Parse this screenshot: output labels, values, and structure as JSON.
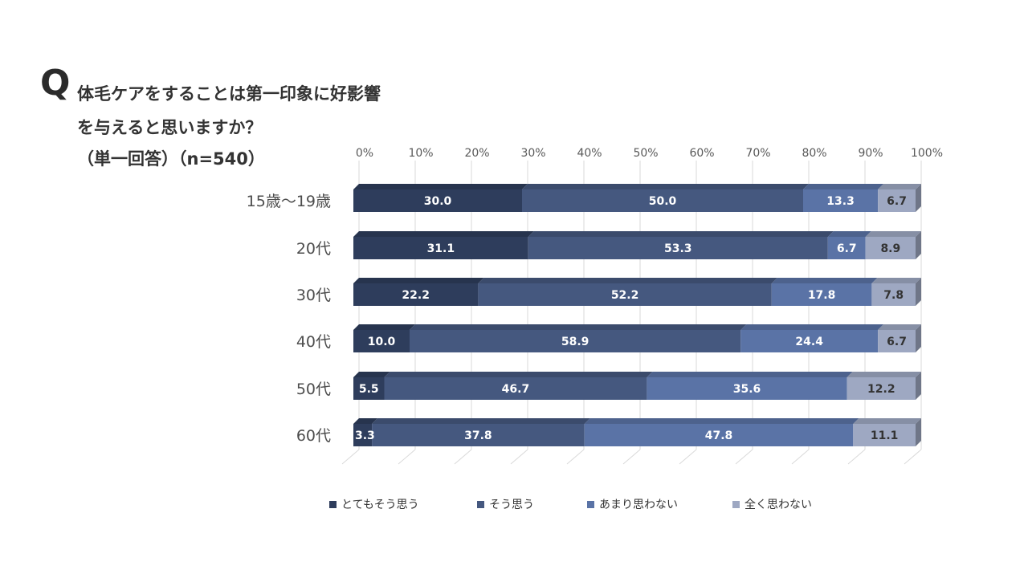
{
  "question": {
    "mark": "Q",
    "line1": "体毛ケアをすることは第一印象に好影響",
    "line2": "を与えると思いますか？",
    "line3": "（単一回答）（n=540）"
  },
  "colors": {
    "series": [
      "#2e3d5c",
      "#45587f",
      "#5a73a6",
      "#9ea8c2"
    ],
    "label_light": "#ffffff",
    "label_dark": "#333333",
    "grid": "#d9d9d9",
    "axis_text": "#595959"
  },
  "chart_data": {
    "type": "bar",
    "orientation": "horizontal",
    "stacked": "percent",
    "categories": [
      "15歳～19歳",
      "20代",
      "30代",
      "40代",
      "50代",
      "60代"
    ],
    "x_ticks": [
      "0%",
      "10%",
      "20%",
      "30%",
      "40%",
      "50%",
      "60%",
      "70%",
      "80%",
      "90%",
      "100%"
    ],
    "xlim": [
      0,
      100
    ],
    "series": [
      {
        "name": "とてもそう思う",
        "values": [
          30.0,
          31.1,
          22.2,
          10.0,
          5.5,
          3.3
        ]
      },
      {
        "name": "そう思う",
        "values": [
          50.0,
          53.3,
          52.2,
          58.9,
          46.7,
          37.8
        ]
      },
      {
        "name": "あまり思わない",
        "values": [
          13.3,
          6.7,
          17.8,
          24.4,
          35.6,
          47.8
        ]
      },
      {
        "name": "全く思わない",
        "values": [
          6.7,
          8.9,
          7.8,
          6.7,
          12.2,
          11.1
        ]
      }
    ],
    "value_labels": [
      [
        "30.0",
        "31.1",
        "22.2",
        "10.0",
        "5.5",
        "3.3"
      ],
      [
        "50.0",
        "53.3",
        "52.2",
        "58.9",
        "46.7",
        "37.8"
      ],
      [
        "13.3",
        "6.7",
        "17.8",
        "24.4",
        "35.6",
        "47.8"
      ],
      [
        "6.7",
        "8.9",
        "7.8",
        "6.7",
        "12.2",
        "11.1"
      ]
    ],
    "legend_position": "bottom",
    "grid": true
  }
}
